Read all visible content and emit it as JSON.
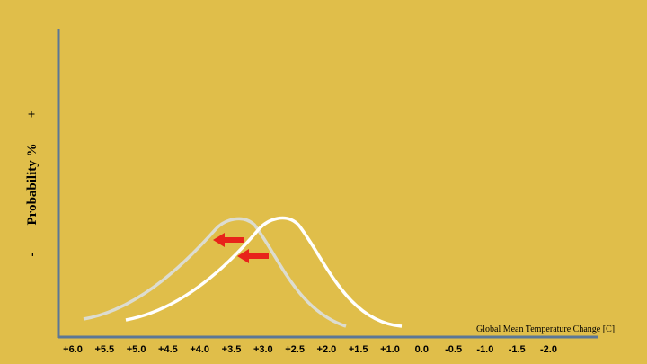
{
  "y_axis": {
    "minus": "-",
    "label": "Probability %",
    "plus": "+"
  },
  "x_axis": {
    "title": "Global Mean Temperature Change [C]",
    "ticks": [
      "+6.0",
      "+5.5",
      "+5.0",
      "+4.5",
      "+4.0",
      "+3.5",
      "+3.0",
      "+2.5",
      "+2.0",
      "+1.5",
      "+1.0",
      "0.0",
      "-0.5",
      "-1.0",
      "-1.5",
      "-2.0"
    ]
  }
}
